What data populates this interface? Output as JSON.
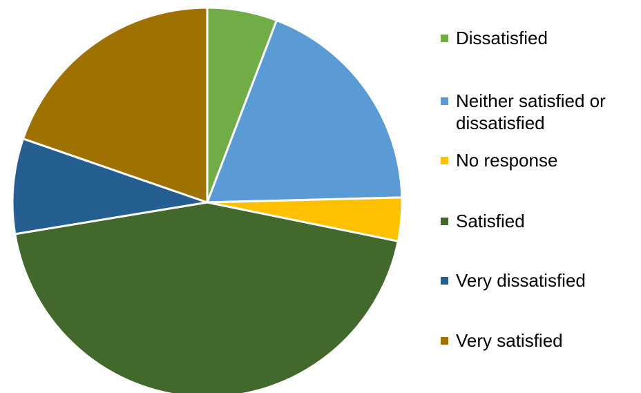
{
  "chart_data": {
    "type": "pie",
    "title": "",
    "categories": [
      "Dissatisfied",
      "Neither satisfied or dissatisfied",
      "No response",
      "Satisfied",
      "Very dissatisfied",
      "Very satisfied"
    ],
    "values": [
      5.8,
      18.8,
      3.6,
      44.2,
      7.9,
      19.7
    ],
    "unit": "%",
    "colors": [
      "#70AD47",
      "#5B9BD5",
      "#FFC000",
      "#43682B",
      "#255E91",
      "#9E7100"
    ],
    "start_angle": "12 o'clock",
    "direction": "clockwise",
    "legend_position": "right"
  }
}
